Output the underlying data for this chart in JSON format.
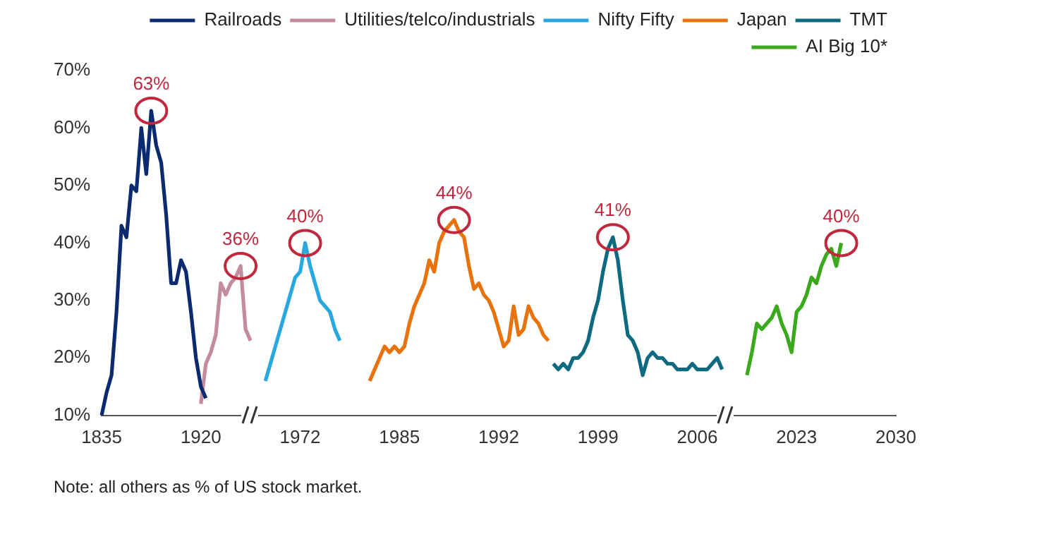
{
  "chart_data": {
    "type": "line",
    "categories": [
      "1835",
      null,
      null,
      null,
      null,
      null,
      null,
      null,
      null,
      null,
      null,
      null,
      null,
      null,
      null,
      null,
      null,
      null,
      null,
      null,
      "1920",
      null,
      null,
      null,
      null,
      null,
      null,
      null,
      null,
      null,
      null,
      null,
      null,
      null,
      null,
      null,
      null,
      null,
      null,
      null,
      "1972",
      null,
      null,
      null,
      null,
      null,
      null,
      null,
      null,
      null,
      null,
      null,
      null,
      null,
      null,
      null,
      null,
      null,
      null,
      null,
      "1985",
      null,
      null,
      null,
      null,
      null,
      null,
      null,
      null,
      null,
      null,
      null,
      null,
      null,
      null,
      null,
      null,
      null,
      null,
      null,
      "1992",
      null,
      null,
      null,
      null,
      null,
      null,
      null,
      null,
      null,
      null,
      null,
      null,
      null,
      null,
      null,
      null,
      null,
      null,
      null,
      "1999",
      null,
      null,
      null,
      null,
      null,
      null,
      null,
      null,
      null,
      null,
      null,
      null,
      null,
      null,
      null,
      null,
      null,
      null,
      null,
      "2006",
      null,
      null,
      null,
      null,
      null,
      null,
      null,
      null,
      null,
      null,
      null,
      null,
      null,
      null,
      null,
      null,
      null,
      null,
      null,
      "2023",
      null,
      null,
      null,
      null,
      null,
      null,
      null,
      null,
      null,
      null,
      null,
      null,
      null,
      null,
      null,
      null,
      null,
      null,
      null,
      "2030"
    ],
    "series": [
      {
        "name": "Railroads",
        "color": "#0b2a6f",
        "values": [
          10,
          14,
          17,
          28,
          43,
          41,
          50,
          49,
          60,
          52,
          63,
          57,
          54,
          45,
          33,
          33,
          37,
          35,
          28,
          20,
          15,
          13,
          null,
          null,
          null,
          null,
          null,
          null,
          null,
          null,
          null,
          null,
          null,
          null,
          null,
          null,
          null,
          null,
          null,
          null,
          null,
          null,
          null,
          null,
          null,
          null,
          null,
          null,
          null,
          null,
          null,
          null,
          null,
          null,
          null,
          null,
          null,
          null,
          null,
          null,
          null,
          null,
          null,
          null,
          null,
          null,
          null,
          null,
          null,
          null,
          null,
          null,
          null,
          null,
          null,
          null,
          null,
          null,
          null,
          null,
          null,
          null,
          null,
          null,
          null,
          null,
          null,
          null,
          null,
          null,
          null,
          null,
          null,
          null,
          null,
          null,
          null,
          null,
          null,
          null,
          null,
          null,
          null,
          null,
          null,
          null,
          null,
          null,
          null,
          null,
          null,
          null,
          null,
          null,
          null,
          null,
          null,
          null,
          null,
          null,
          null,
          null,
          null,
          null,
          null,
          null,
          null,
          null,
          null,
          null,
          null,
          null,
          null,
          null,
          null,
          null,
          null,
          null,
          null,
          null,
          null,
          null,
          null,
          null,
          null,
          null,
          null,
          null,
          null,
          null,
          null,
          null,
          null,
          null,
          null,
          null,
          null,
          null,
          null,
          null,
          null
        ],
        "value_labels": [
          null,
          null,
          null,
          null,
          null,
          null,
          null,
          null,
          null,
          null,
          "63%",
          null,
          null,
          null,
          null,
          null,
          null,
          null,
          null,
          null,
          null,
          null,
          null,
          null,
          null,
          null,
          null,
          null,
          null,
          null,
          null,
          null,
          null,
          null,
          null,
          null,
          null,
          null,
          null,
          null,
          null,
          null,
          null,
          null,
          null,
          null,
          null,
          null,
          null,
          null,
          null,
          null,
          null,
          null,
          null,
          null,
          null,
          null,
          null,
          null,
          null,
          null,
          null,
          null,
          null,
          null,
          null,
          null,
          null,
          null,
          null,
          null,
          null,
          null,
          null,
          null,
          null,
          null,
          null,
          null,
          null,
          null,
          null,
          null,
          null,
          null,
          null,
          null,
          null,
          null,
          null,
          null,
          null,
          null,
          null,
          null,
          null,
          null,
          null,
          null,
          null,
          null,
          null,
          null,
          null,
          null,
          null,
          null,
          null,
          null,
          null,
          null,
          null,
          null,
          null,
          null,
          null,
          null,
          null,
          null,
          null,
          null,
          null,
          null,
          null,
          null,
          null,
          null,
          null,
          null,
          null,
          null,
          null,
          null,
          null,
          null,
          null,
          null,
          null,
          null,
          null,
          null,
          null,
          null,
          null,
          null,
          null,
          null,
          null,
          null,
          null,
          null,
          null,
          null,
          null,
          null,
          null,
          null,
          null,
          null,
          null
        ]
      },
      {
        "name": "Utilities/telco/industrials",
        "color": "#c48aa0",
        "values": [
          null,
          null,
          null,
          null,
          null,
          null,
          null,
          null,
          null,
          null,
          null,
          null,
          null,
          null,
          null,
          null,
          null,
          null,
          null,
          null,
          12,
          19,
          21,
          24,
          33,
          31,
          33,
          34,
          36,
          25,
          23,
          null,
          null,
          null,
          null,
          null,
          null,
          null,
          null,
          null,
          null,
          null,
          null,
          null,
          null,
          null,
          null,
          null,
          null,
          null,
          null,
          null,
          null,
          null,
          null,
          null,
          null,
          null,
          null,
          null,
          null,
          null,
          null,
          null,
          null,
          null,
          null,
          null,
          null,
          null,
          null,
          null,
          null,
          null,
          null,
          null,
          null,
          null,
          null,
          null,
          null,
          null,
          null,
          null,
          null,
          null,
          null,
          null,
          null,
          null,
          null,
          null,
          null,
          null,
          null,
          null,
          null,
          null,
          null,
          null,
          null,
          null,
          null,
          null,
          null,
          null,
          null,
          null,
          null,
          null,
          null,
          null,
          null,
          null,
          null,
          null,
          null,
          null,
          null,
          null,
          null,
          null,
          null,
          null,
          null,
          null,
          null,
          null,
          null,
          null,
          null,
          null,
          null,
          null,
          null,
          null,
          null,
          null,
          null,
          null,
          null,
          null,
          null,
          null,
          null,
          null,
          null,
          null,
          null,
          null,
          null,
          null,
          null,
          null,
          null,
          null,
          null,
          null,
          null,
          null,
          null
        ],
        "value_labels": [
          null,
          null,
          null,
          null,
          null,
          null,
          null,
          null,
          null,
          null,
          null,
          null,
          null,
          null,
          null,
          null,
          null,
          null,
          null,
          null,
          null,
          null,
          null,
          null,
          null,
          null,
          null,
          null,
          "36%",
          null,
          null,
          null,
          null,
          null,
          null,
          null,
          null,
          null,
          null,
          null,
          null,
          null,
          null,
          null,
          null,
          null,
          null,
          null,
          null,
          null,
          null,
          null,
          null,
          null,
          null,
          null,
          null,
          null,
          null,
          null,
          null,
          null,
          null,
          null,
          null,
          null,
          null,
          null,
          null,
          null,
          null,
          null,
          null,
          null,
          null,
          null,
          null,
          null,
          null,
          null,
          null,
          null,
          null,
          null,
          null,
          null,
          null,
          null,
          null,
          null,
          null,
          null,
          null,
          null,
          null,
          null,
          null,
          null,
          null,
          null,
          null,
          null,
          null,
          null,
          null,
          null,
          null,
          null,
          null,
          null,
          null,
          null,
          null,
          null,
          null,
          null,
          null,
          null,
          null,
          null,
          null,
          null,
          null,
          null,
          null,
          null,
          null,
          null,
          null,
          null,
          null,
          null,
          null,
          null,
          null,
          null,
          null,
          null,
          null,
          null,
          null,
          null,
          null,
          null,
          null,
          null,
          null,
          null,
          null,
          null,
          null,
          null,
          null,
          null,
          null,
          null,
          null,
          null,
          null,
          null,
          null
        ]
      },
      {
        "name": "Nifty Fifty",
        "color": "#29a8e0",
        "values": [
          null,
          null,
          null,
          null,
          null,
          null,
          null,
          null,
          null,
          null,
          null,
          null,
          null,
          null,
          null,
          null,
          null,
          null,
          null,
          null,
          null,
          null,
          null,
          null,
          null,
          null,
          null,
          null,
          null,
          null,
          null,
          null,
          null,
          16,
          19,
          22,
          25,
          28,
          31,
          34,
          35,
          40,
          36,
          33,
          30,
          29,
          28,
          25,
          23,
          null,
          null,
          null,
          null,
          null,
          null,
          null,
          null,
          null,
          null,
          null,
          null,
          null,
          null,
          null,
          null,
          null,
          null,
          null,
          null,
          null,
          null,
          null,
          null,
          null,
          null,
          null,
          null,
          null,
          null,
          null,
          null,
          null,
          null,
          null,
          null,
          null,
          null,
          null,
          null,
          null,
          null,
          null,
          null,
          null,
          null,
          null,
          null,
          null,
          null,
          null,
          null,
          null,
          null,
          null,
          null,
          null,
          null,
          null,
          null,
          null,
          null,
          null,
          null,
          null,
          null,
          null,
          null,
          null,
          null,
          null,
          null,
          null,
          null,
          null,
          null,
          null,
          null,
          null,
          null,
          null,
          null,
          null,
          null,
          null,
          null,
          null,
          null,
          null,
          null,
          null,
          null,
          null,
          null,
          null,
          null,
          null,
          null,
          null,
          null,
          null,
          null,
          null,
          null,
          null,
          null,
          null,
          null,
          null,
          null,
          null,
          null
        ],
        "value_labels": [
          null,
          null,
          null,
          null,
          null,
          null,
          null,
          null,
          null,
          null,
          null,
          null,
          null,
          null,
          null,
          null,
          null,
          null,
          null,
          null,
          null,
          null,
          null,
          null,
          null,
          null,
          null,
          null,
          null,
          null,
          null,
          null,
          null,
          null,
          null,
          null,
          null,
          null,
          null,
          null,
          null,
          "40%",
          null,
          null,
          null,
          null,
          null,
          null,
          null,
          null,
          null,
          null,
          null,
          null,
          null,
          null,
          null,
          null,
          null,
          null,
          null,
          null,
          null,
          null,
          null,
          null,
          null,
          null,
          null,
          null,
          null,
          null,
          null,
          null,
          null,
          null,
          null,
          null,
          null,
          null,
          null,
          null,
          null,
          null,
          null,
          null,
          null,
          null,
          null,
          null,
          null,
          null,
          null,
          null,
          null,
          null,
          null,
          null,
          null,
          null,
          null,
          null,
          null,
          null,
          null,
          null,
          null,
          null,
          null,
          null,
          null,
          null,
          null,
          null,
          null,
          null,
          null,
          null,
          null,
          null,
          null,
          null,
          null,
          null,
          null,
          null,
          null,
          null,
          null,
          null,
          null,
          null,
          null,
          null,
          null,
          null,
          null,
          null,
          null,
          null,
          null,
          null,
          null,
          null,
          null,
          null,
          null,
          null,
          null,
          null,
          null,
          null,
          null,
          null,
          null,
          null,
          null,
          null,
          null,
          null,
          null
        ]
      },
      {
        "name": "Japan",
        "color": "#e8720c",
        "values": [
          null,
          null,
          null,
          null,
          null,
          null,
          null,
          null,
          null,
          null,
          null,
          null,
          null,
          null,
          null,
          null,
          null,
          null,
          null,
          null,
          null,
          null,
          null,
          null,
          null,
          null,
          null,
          null,
          null,
          null,
          null,
          null,
          null,
          null,
          null,
          null,
          null,
          null,
          null,
          null,
          null,
          null,
          null,
          null,
          null,
          null,
          null,
          null,
          null,
          null,
          null,
          null,
          null,
          null,
          16,
          18,
          20,
          22,
          21,
          22,
          21,
          22,
          26,
          29,
          31,
          33,
          37,
          35,
          40,
          42,
          43,
          44,
          42,
          41,
          36,
          32,
          33,
          31,
          30,
          28,
          25,
          22,
          23,
          29,
          24,
          25,
          29,
          27,
          26,
          24,
          23,
          null,
          null,
          null,
          null,
          null,
          null,
          null,
          null,
          null,
          null,
          null,
          null,
          null,
          null,
          null,
          null,
          null,
          null,
          null,
          null,
          null,
          null,
          null,
          null,
          null,
          null,
          null,
          null,
          null,
          null,
          null,
          null,
          null,
          null,
          null,
          null,
          null,
          null,
          null,
          null,
          null,
          null,
          null,
          null,
          null,
          null,
          null,
          null,
          null,
          null,
          null,
          null,
          null,
          null,
          null,
          null,
          null,
          null,
          null,
          null,
          null,
          null,
          null,
          null,
          null,
          null,
          null,
          null,
          null,
          null
        ],
        "value_labels": [
          null,
          null,
          null,
          null,
          null,
          null,
          null,
          null,
          null,
          null,
          null,
          null,
          null,
          null,
          null,
          null,
          null,
          null,
          null,
          null,
          null,
          null,
          null,
          null,
          null,
          null,
          null,
          null,
          null,
          null,
          null,
          null,
          null,
          null,
          null,
          null,
          null,
          null,
          null,
          null,
          null,
          null,
          null,
          null,
          null,
          null,
          null,
          null,
          null,
          null,
          null,
          null,
          null,
          null,
          null,
          null,
          null,
          null,
          null,
          null,
          null,
          null,
          null,
          null,
          null,
          null,
          null,
          null,
          null,
          null,
          null,
          "44%",
          null,
          null,
          null,
          null,
          null,
          null,
          null,
          null,
          null,
          null,
          null,
          null,
          null,
          null,
          null,
          null,
          null,
          null,
          null,
          null,
          null,
          null,
          null,
          null,
          null,
          null,
          null,
          null,
          null,
          null,
          null,
          null,
          null,
          null,
          null,
          null,
          null,
          null,
          null,
          null,
          null,
          null,
          null,
          null,
          null,
          null,
          null,
          null,
          null,
          null,
          null,
          null,
          null,
          null,
          null,
          null,
          null,
          null,
          null,
          null,
          null,
          null,
          null,
          null,
          null,
          null,
          null,
          null,
          null,
          null,
          null,
          null,
          null,
          null,
          null,
          null,
          null,
          null,
          null,
          null,
          null,
          null,
          null,
          null,
          null,
          null,
          null,
          null,
          null
        ]
      },
      {
        "name": "TMT",
        "color": "#0e6a80",
        "values": [
          null,
          null,
          null,
          null,
          null,
          null,
          null,
          null,
          null,
          null,
          null,
          null,
          null,
          null,
          null,
          null,
          null,
          null,
          null,
          null,
          null,
          null,
          null,
          null,
          null,
          null,
          null,
          null,
          null,
          null,
          null,
          null,
          null,
          null,
          null,
          null,
          null,
          null,
          null,
          null,
          null,
          null,
          null,
          null,
          null,
          null,
          null,
          null,
          null,
          null,
          null,
          null,
          null,
          null,
          null,
          null,
          null,
          null,
          null,
          null,
          null,
          null,
          null,
          null,
          null,
          null,
          null,
          null,
          null,
          null,
          null,
          null,
          null,
          null,
          null,
          null,
          null,
          null,
          null,
          null,
          null,
          null,
          null,
          null,
          null,
          null,
          null,
          null,
          null,
          null,
          null,
          19,
          18,
          19,
          18,
          20,
          20,
          21,
          23,
          27,
          30,
          35,
          39,
          41,
          37,
          30,
          24,
          23,
          21,
          17,
          20,
          21,
          20,
          20,
          19,
          19,
          18,
          18,
          18,
          19,
          18,
          18,
          18,
          19,
          20,
          18,
          null,
          null,
          null,
          null,
          null,
          null,
          null,
          null,
          null,
          null,
          null,
          null,
          null,
          null,
          null,
          null,
          null,
          null,
          null,
          null,
          null,
          null,
          null,
          null,
          null,
          null,
          null,
          null,
          null,
          null,
          null,
          null,
          null,
          null,
          null
        ],
        "value_labels": [
          null,
          null,
          null,
          null,
          null,
          null,
          null,
          null,
          null,
          null,
          null,
          null,
          null,
          null,
          null,
          null,
          null,
          null,
          null,
          null,
          null,
          null,
          null,
          null,
          null,
          null,
          null,
          null,
          null,
          null,
          null,
          null,
          null,
          null,
          null,
          null,
          null,
          null,
          null,
          null,
          null,
          null,
          null,
          null,
          null,
          null,
          null,
          null,
          null,
          null,
          null,
          null,
          null,
          null,
          null,
          null,
          null,
          null,
          null,
          null,
          null,
          null,
          null,
          null,
          null,
          null,
          null,
          null,
          null,
          null,
          null,
          null,
          null,
          null,
          null,
          null,
          null,
          null,
          null,
          null,
          null,
          null,
          null,
          null,
          null,
          null,
          null,
          null,
          null,
          null,
          null,
          null,
          null,
          null,
          null,
          null,
          null,
          null,
          null,
          null,
          null,
          null,
          null,
          "41%",
          null,
          null,
          null,
          null,
          null,
          null,
          null,
          null,
          null,
          null,
          null,
          null,
          null,
          null,
          null,
          null,
          null,
          null,
          null,
          null,
          null,
          null,
          null,
          null,
          null,
          null,
          null,
          null,
          null,
          null,
          null,
          null,
          null,
          null,
          null,
          null,
          null,
          null,
          null,
          null,
          null,
          null,
          null,
          null,
          null,
          null,
          null,
          null,
          null,
          null,
          null,
          null,
          null,
          null,
          null,
          null,
          null
        ]
      },
      {
        "name": "AI Big 10*",
        "color": "#3aaa1c",
        "values": [
          null,
          null,
          null,
          null,
          null,
          null,
          null,
          null,
          null,
          null,
          null,
          null,
          null,
          null,
          null,
          null,
          null,
          null,
          null,
          null,
          null,
          null,
          null,
          null,
          null,
          null,
          null,
          null,
          null,
          null,
          null,
          null,
          null,
          null,
          null,
          null,
          null,
          null,
          null,
          null,
          null,
          null,
          null,
          null,
          null,
          null,
          null,
          null,
          null,
          null,
          null,
          null,
          null,
          null,
          null,
          null,
          null,
          null,
          null,
          null,
          null,
          null,
          null,
          null,
          null,
          null,
          null,
          null,
          null,
          null,
          null,
          null,
          null,
          null,
          null,
          null,
          null,
          null,
          null,
          null,
          null,
          null,
          null,
          null,
          null,
          null,
          null,
          null,
          null,
          null,
          null,
          null,
          null,
          null,
          null,
          null,
          null,
          null,
          null,
          null,
          null,
          null,
          null,
          null,
          null,
          null,
          null,
          null,
          null,
          null,
          null,
          null,
          null,
          null,
          null,
          null,
          null,
          null,
          null,
          null,
          null,
          null,
          null,
          null,
          null,
          null,
          null,
          null,
          null,
          null,
          17,
          21,
          26,
          25,
          26,
          27,
          29,
          26,
          24,
          21,
          28,
          29,
          31,
          34,
          33,
          36,
          38,
          39,
          36,
          40,
          null,
          null,
          null,
          null,
          null,
          null,
          null,
          null,
          null,
          null,
          null
        ],
        "value_labels": [
          null,
          null,
          null,
          null,
          null,
          null,
          null,
          null,
          null,
          null,
          null,
          null,
          null,
          null,
          null,
          null,
          null,
          null,
          null,
          null,
          null,
          null,
          null,
          null,
          null,
          null,
          null,
          null,
          null,
          null,
          null,
          null,
          null,
          null,
          null,
          null,
          null,
          null,
          null,
          null,
          null,
          null,
          null,
          null,
          null,
          null,
          null,
          null,
          null,
          null,
          null,
          null,
          null,
          null,
          null,
          null,
          null,
          null,
          null,
          null,
          null,
          null,
          null,
          null,
          null,
          null,
          null,
          null,
          null,
          null,
          null,
          null,
          null,
          null,
          null,
          null,
          null,
          null,
          null,
          null,
          null,
          null,
          null,
          null,
          null,
          null,
          null,
          null,
          null,
          null,
          null,
          null,
          null,
          null,
          null,
          null,
          null,
          null,
          null,
          null,
          null,
          null,
          null,
          null,
          null,
          null,
          null,
          null,
          null,
          null,
          null,
          null,
          null,
          null,
          null,
          null,
          null,
          null,
          null,
          null,
          null,
          null,
          null,
          null,
          null,
          null,
          null,
          null,
          null,
          null,
          null,
          null,
          null,
          null,
          null,
          null,
          null,
          null,
          null,
          null,
          null,
          null,
          null,
          null,
          null,
          null,
          null,
          null,
          null,
          "40%",
          null,
          null,
          null,
          null,
          null,
          null,
          null,
          null,
          null,
          null,
          null
        ]
      }
    ],
    "ylim": [
      10,
      70
    ],
    "yticks": [
      {
        "value": 10,
        "label": "10%"
      },
      {
        "value": 20,
        "label": "20%"
      },
      {
        "value": 30,
        "label": "30%"
      },
      {
        "value": 40,
        "label": "40%"
      },
      {
        "value": 50,
        "label": "50%"
      },
      {
        "value": 60,
        "label": "60%"
      },
      {
        "value": 70,
        "label": "70%"
      }
    ],
    "legend": "top right",
    "annotations": [
      "Note: all others as % of US stock market."
    ]
  }
}
